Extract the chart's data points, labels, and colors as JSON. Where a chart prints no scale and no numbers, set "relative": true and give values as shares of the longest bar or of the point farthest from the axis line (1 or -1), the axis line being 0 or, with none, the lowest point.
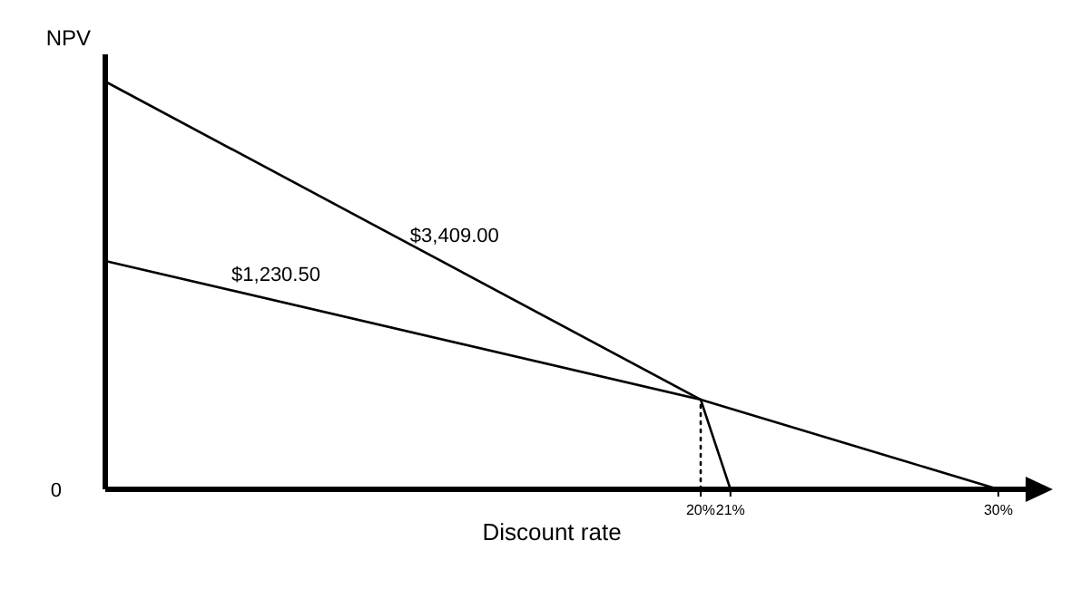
{
  "chart_data": {
    "type": "line",
    "relative": true,
    "xlabel": "Discount rate",
    "ylabel": "NPV",
    "annotations": [
      "0"
    ],
    "xlim": [
      0,
      30
    ],
    "xticks": [
      {
        "value": 20,
        "label": "20%"
      },
      {
        "value": 21,
        "label": "21%"
      },
      {
        "value": 30,
        "label": "30%"
      }
    ],
    "series": [
      {
        "name": "$3,409.00",
        "color": "#000000",
        "x": [
          0,
          20,
          21
        ],
        "values": [
          1,
          0.22,
          0
        ]
      },
      {
        "name": "$1,230.50",
        "color": "#000000",
        "x": [
          0,
          20,
          30
        ],
        "values": [
          0.56,
          0.22,
          0
        ]
      },
      {
        "color": "#000000",
        "x": [
          20,
          20
        ],
        "values": [
          0,
          0.22
        ],
        "line_style": "dotted"
      }
    ]
  }
}
